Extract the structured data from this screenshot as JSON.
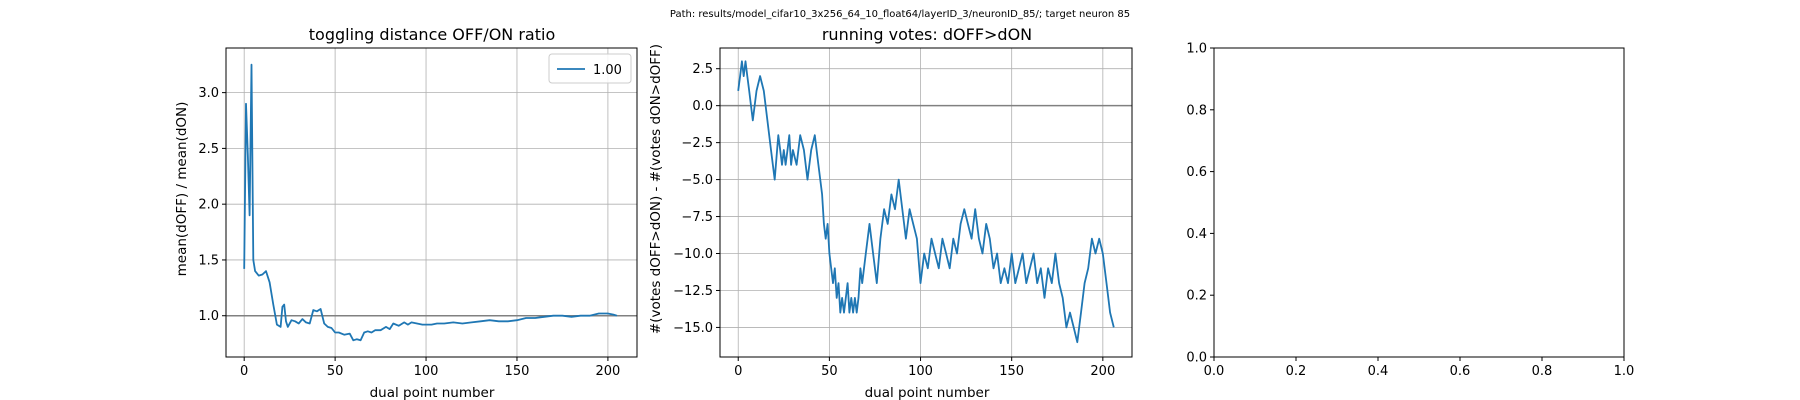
{
  "figure": {
    "suptitle": "Path: results/model_cifar10_3x256_64_10_float64/layerID_3/neuronID_85/; target neuron 85"
  },
  "chart_data": [
    {
      "type": "line",
      "title": "toggling distance OFF/ON ratio",
      "xlabel": "dual point number",
      "ylabel": "mean(dOFF) / mean(dON)",
      "xlim": [
        -10,
        216
      ],
      "ylim": [
        0.63,
        3.4
      ],
      "xticks": [
        0,
        50,
        100,
        150,
        200
      ],
      "xtick_labels": [
        "0",
        "50",
        "100",
        "150",
        "200"
      ],
      "yticks": [
        1.0,
        1.5,
        2.0,
        2.5,
        3.0
      ],
      "ytick_labels": [
        "1.0",
        "1.5",
        "2.0",
        "2.5",
        "3.0"
      ],
      "grid": true,
      "legend": "top-right",
      "hline": 1.0,
      "line_color": "#1f77b4",
      "hline_color": "#808080",
      "series": [
        {
          "name": "1.00",
          "x": [
            0,
            1,
            2,
            3,
            4,
            5,
            6,
            8,
            10,
            12,
            14,
            16,
            18,
            20,
            21,
            22,
            23,
            24,
            26,
            28,
            30,
            32,
            34,
            36,
            38,
            40,
            42,
            44,
            46,
            48,
            50,
            52,
            55,
            58,
            60,
            62,
            64,
            66,
            68,
            70,
            72,
            75,
            78,
            80,
            82,
            85,
            88,
            90,
            92,
            95,
            98,
            100,
            103,
            106,
            110,
            115,
            120,
            125,
            130,
            135,
            140,
            145,
            150,
            155,
            160,
            165,
            170,
            175,
            180,
            185,
            190,
            195,
            200,
            203,
            205
          ],
          "values": [
            1.42,
            2.9,
            2.45,
            1.9,
            3.25,
            1.5,
            1.4,
            1.36,
            1.37,
            1.4,
            1.3,
            1.1,
            0.92,
            0.9,
            1.08,
            1.1,
            0.95,
            0.9,
            0.96,
            0.95,
            0.93,
            0.97,
            0.94,
            0.93,
            1.05,
            1.04,
            1.06,
            0.93,
            0.9,
            0.89,
            0.85,
            0.85,
            0.83,
            0.84,
            0.78,
            0.79,
            0.78,
            0.85,
            0.86,
            0.85,
            0.87,
            0.87,
            0.9,
            0.88,
            0.93,
            0.91,
            0.94,
            0.92,
            0.94,
            0.93,
            0.92,
            0.92,
            0.92,
            0.93,
            0.93,
            0.94,
            0.93,
            0.94,
            0.95,
            0.96,
            0.95,
            0.95,
            0.96,
            0.98,
            0.98,
            0.99,
            1.0,
            1.0,
            0.99,
            1.0,
            1.0,
            1.02,
            1.02,
            1.01,
            1.0
          ]
        }
      ]
    },
    {
      "type": "line",
      "title": "running votes: dOFF>dON",
      "xlabel": "dual point number",
      "ylabel": "#(votes dOFF>dON) - #(votes dON>dOFF)",
      "xlim": [
        -10,
        216
      ],
      "ylim": [
        -17,
        3.9
      ],
      "xticks": [
        0,
        50,
        100,
        150,
        200
      ],
      "xtick_labels": [
        "0",
        "50",
        "100",
        "150",
        "200"
      ],
      "yticks": [
        2.5,
        0.0,
        -2.5,
        -5.0,
        -7.5,
        -10.0,
        -12.5,
        -15.0
      ],
      "ytick_labels": [
        "2.5",
        "0.0",
        "−2.5",
        "−5.0",
        "−7.5",
        "−10.0",
        "−12.5",
        "−15.0"
      ],
      "grid": true,
      "hline": 0.0,
      "line_color": "#1f77b4",
      "hline_color": "#808080",
      "series": [
        {
          "x": [
            0,
            1,
            2,
            3,
            4,
            5,
            6,
            7,
            8,
            10,
            12,
            14,
            16,
            18,
            20,
            22,
            23,
            24,
            25,
            26,
            27,
            28,
            29,
            30,
            32,
            34,
            36,
            38,
            40,
            42,
            44,
            46,
            47,
            48,
            49,
            50,
            51,
            52,
            53,
            54,
            55,
            56,
            57,
            58,
            59,
            60,
            61,
            62,
            63,
            64,
            65,
            66,
            67,
            68,
            70,
            72,
            74,
            76,
            78,
            80,
            82,
            84,
            86,
            88,
            90,
            92,
            94,
            96,
            98,
            100,
            102,
            104,
            106,
            108,
            110,
            112,
            114,
            116,
            118,
            120,
            122,
            124,
            126,
            128,
            130,
            132,
            134,
            136,
            138,
            140,
            142,
            144,
            146,
            148,
            150,
            152,
            154,
            156,
            158,
            160,
            162,
            164,
            166,
            168,
            170,
            172,
            174,
            176,
            178,
            180,
            182,
            184,
            186,
            188,
            190,
            192,
            194,
            196,
            198,
            200,
            202,
            204,
            206
          ],
          "values": [
            1,
            2,
            3,
            2,
            3,
            2,
            1,
            0,
            -1,
            1,
            2,
            1,
            -1,
            -3,
            -5,
            -2,
            -3,
            -4,
            -3,
            -4,
            -3,
            -2,
            -4,
            -3,
            -4,
            -2,
            -3,
            -5,
            -3,
            -2,
            -4,
            -6,
            -8,
            -9,
            -8,
            -10,
            -11,
            -12,
            -11,
            -13,
            -12,
            -14,
            -13,
            -14,
            -13,
            -12,
            -14,
            -13,
            -14,
            -13,
            -14,
            -13,
            -11,
            -12,
            -10,
            -8,
            -10,
            -12,
            -9,
            -7,
            -8,
            -6,
            -7,
            -5,
            -7,
            -9,
            -7,
            -8,
            -9,
            -12,
            -10,
            -11,
            -9,
            -10,
            -11,
            -9,
            -10,
            -11,
            -9,
            -10,
            -8,
            -7,
            -8,
            -9,
            -7,
            -9,
            -10,
            -8,
            -9,
            -11,
            -10,
            -12,
            -11,
            -12,
            -10,
            -12,
            -11,
            -10,
            -12,
            -11,
            -10,
            -12,
            -11,
            -13,
            -11,
            -12,
            -10,
            -12,
            -13,
            -15,
            -14,
            -15,
            -16,
            -14,
            -12,
            -11,
            -9,
            -10,
            -9,
            -10,
            -12,
            -14,
            -15
          ]
        }
      ]
    },
    {
      "type": "line",
      "title": "",
      "xlabel": "",
      "ylabel": "",
      "xlim": [
        0,
        1
      ],
      "ylim": [
        0,
        1
      ],
      "xticks": [
        0.0,
        0.2,
        0.4,
        0.6,
        0.8,
        1.0
      ],
      "xtick_labels": [
        "0.0",
        "0.2",
        "0.4",
        "0.6",
        "0.8",
        "1.0"
      ],
      "yticks": [
        0.0,
        0.2,
        0.4,
        0.6,
        0.8,
        1.0
      ],
      "ytick_labels": [
        "0.0",
        "0.2",
        "0.4",
        "0.6",
        "0.8",
        "1.0"
      ],
      "grid": false,
      "series": []
    }
  ]
}
